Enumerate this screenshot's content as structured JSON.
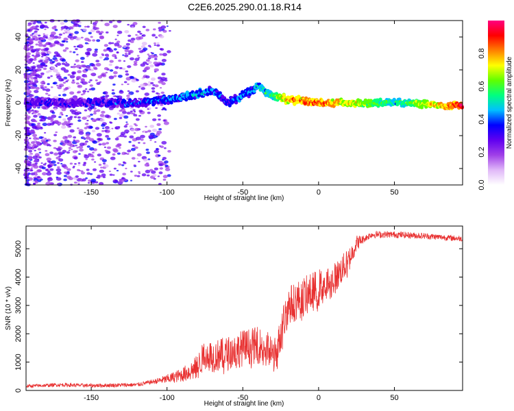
{
  "title": "C2E6.2025.290.01.18.R14",
  "chart_data": [
    {
      "type": "heatmap",
      "title": "C2E6.2025.290.01.18.R14",
      "xlabel": "Height of straight line (km)",
      "ylabel": "Frequency (Hz)",
      "xlim": [
        -193,
        95
      ],
      "ylim": [
        -50,
        50
      ],
      "xticks": [
        -150,
        -100,
        -50,
        0,
        50
      ],
      "yticks": [
        -40,
        -20,
        0,
        20,
        40
      ],
      "colorbar": {
        "label": "Normalized spectral amplitude",
        "range": [
          0.0,
          1.0
        ],
        "ticks": [
          0.0,
          0.2,
          0.4,
          0.6,
          0.8
        ],
        "colormap": [
          "#ffffff",
          "#e0b8f8",
          "#a040e8",
          "#6000f0",
          "#0000ff",
          "#00c0ff",
          "#00ff80",
          "#60ff00",
          "#ffff00",
          "#ff8000",
          "#ff0000",
          "#ff0080"
        ]
      },
      "ridge": [
        {
          "x": -193,
          "freq": 0,
          "amp": 0.3
        },
        {
          "x": -160,
          "freq": 0,
          "amp": 0.3
        },
        {
          "x": -120,
          "freq": 0,
          "amp": 0.35
        },
        {
          "x": -100,
          "freq": 2,
          "amp": 0.4
        },
        {
          "x": -80,
          "freq": 5,
          "amp": 0.45
        },
        {
          "x": -70,
          "freq": 8,
          "amp": 0.4
        },
        {
          "x": -60,
          "freq": 0,
          "amp": 0.35
        },
        {
          "x": -50,
          "freq": 4,
          "amp": 0.4
        },
        {
          "x": -40,
          "freq": 10,
          "amp": 0.45
        },
        {
          "x": -30,
          "freq": 4,
          "amp": 0.55
        },
        {
          "x": -20,
          "freq": 2,
          "amp": 0.8
        },
        {
          "x": 0,
          "freq": 0,
          "amp": 0.85
        },
        {
          "x": 50,
          "freq": 0,
          "amp": 0.5
        },
        {
          "x": 95,
          "freq": -2,
          "amp": 0.9
        }
      ]
    },
    {
      "type": "line",
      "xlabel": "Height of straight line (km)",
      "ylabel": "SNR (10 * v/v)",
      "xlim": [
        -193,
        95
      ],
      "ylim": [
        0,
        5800
      ],
      "xticks": [
        -150,
        -100,
        -50,
        0,
        50
      ],
      "yticks": [
        0,
        1000,
        2000,
        3000,
        4000,
        5000
      ],
      "color": "#e83030",
      "series": [
        {
          "x": -193,
          "y": 150
        },
        {
          "x": -170,
          "y": 200
        },
        {
          "x": -150,
          "y": 170
        },
        {
          "x": -120,
          "y": 200
        },
        {
          "x": -110,
          "y": 300
        },
        {
          "x": -100,
          "y": 400
        },
        {
          "x": -90,
          "y": 550
        },
        {
          "x": -80,
          "y": 800
        },
        {
          "x": -75,
          "y": 1300
        },
        {
          "x": -70,
          "y": 1200
        },
        {
          "x": -60,
          "y": 1300
        },
        {
          "x": -50,
          "y": 1500
        },
        {
          "x": -40,
          "y": 1600
        },
        {
          "x": -35,
          "y": 1500
        },
        {
          "x": -28,
          "y": 1200
        },
        {
          "x": -25,
          "y": 2000
        },
        {
          "x": -20,
          "y": 3000
        },
        {
          "x": -10,
          "y": 3300
        },
        {
          "x": 0,
          "y": 3600
        },
        {
          "x": 10,
          "y": 3900
        },
        {
          "x": 20,
          "y": 4600
        },
        {
          "x": 25,
          "y": 5200
        },
        {
          "x": 35,
          "y": 5500
        },
        {
          "x": 50,
          "y": 5500
        },
        {
          "x": 70,
          "y": 5450
        },
        {
          "x": 95,
          "y": 5350
        }
      ],
      "noise": [
        {
          "x": -193,
          "amp": 120
        },
        {
          "x": -110,
          "amp": 150
        },
        {
          "x": -90,
          "amp": 500
        },
        {
          "x": -75,
          "amp": 1100
        },
        {
          "x": -50,
          "amp": 1300
        },
        {
          "x": -30,
          "amp": 1300
        },
        {
          "x": -25,
          "amp": 1400
        },
        {
          "x": 0,
          "amp": 1400
        },
        {
          "x": 20,
          "amp": 900
        },
        {
          "x": 30,
          "amp": 250
        },
        {
          "x": 95,
          "amp": 200
        }
      ]
    }
  ]
}
